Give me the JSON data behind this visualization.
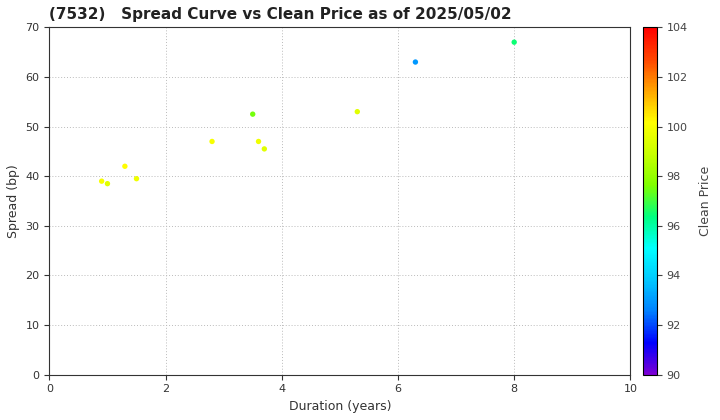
{
  "title": "(7532)   Spread Curve vs Clean Price as of 2025/05/02",
  "xlabel": "Duration (years)",
  "ylabel": "Spread (bp)",
  "colorbar_label": "Clean Price",
  "xlim": [
    0,
    10
  ],
  "ylim": [
    0,
    70
  ],
  "xticks": [
    0,
    2,
    4,
    6,
    8,
    10
  ],
  "yticks": [
    0,
    10,
    20,
    30,
    40,
    50,
    60,
    70
  ],
  "colorbar_min": 90,
  "colorbar_max": 104,
  "colorbar_ticks": [
    90,
    92,
    94,
    96,
    98,
    100,
    102,
    104
  ],
  "points": [
    {
      "duration": 0.9,
      "spread": 39.0,
      "price": 100.0
    },
    {
      "duration": 1.0,
      "spread": 38.5,
      "price": 99.5
    },
    {
      "duration": 1.3,
      "spread": 42.0,
      "price": 100.2
    },
    {
      "duration": 1.5,
      "spread": 39.5,
      "price": 99.8
    },
    {
      "duration": 2.8,
      "spread": 47.0,
      "price": 100.0
    },
    {
      "duration": 3.5,
      "spread": 52.5,
      "price": 97.5
    },
    {
      "duration": 3.6,
      "spread": 47.0,
      "price": 99.8
    },
    {
      "duration": 3.7,
      "spread": 45.5,
      "price": 99.5
    },
    {
      "duration": 5.3,
      "spread": 53.0,
      "price": 99.5
    },
    {
      "duration": 6.3,
      "spread": 63.0,
      "price": 93.0
    },
    {
      "duration": 8.0,
      "spread": 67.0,
      "price": 96.5
    }
  ],
  "marker_size": 15,
  "bg_color": "#ffffff",
  "grid_color": "#bbbbbb",
  "cmap_colors": [
    "#7b00d4",
    "#0000ff",
    "#0080ff",
    "#00c8ff",
    "#00ffff",
    "#00ff80",
    "#80ff00",
    "#c8ff00",
    "#ffff00",
    "#ffa500",
    "#ff4500",
    "#ff0000"
  ]
}
